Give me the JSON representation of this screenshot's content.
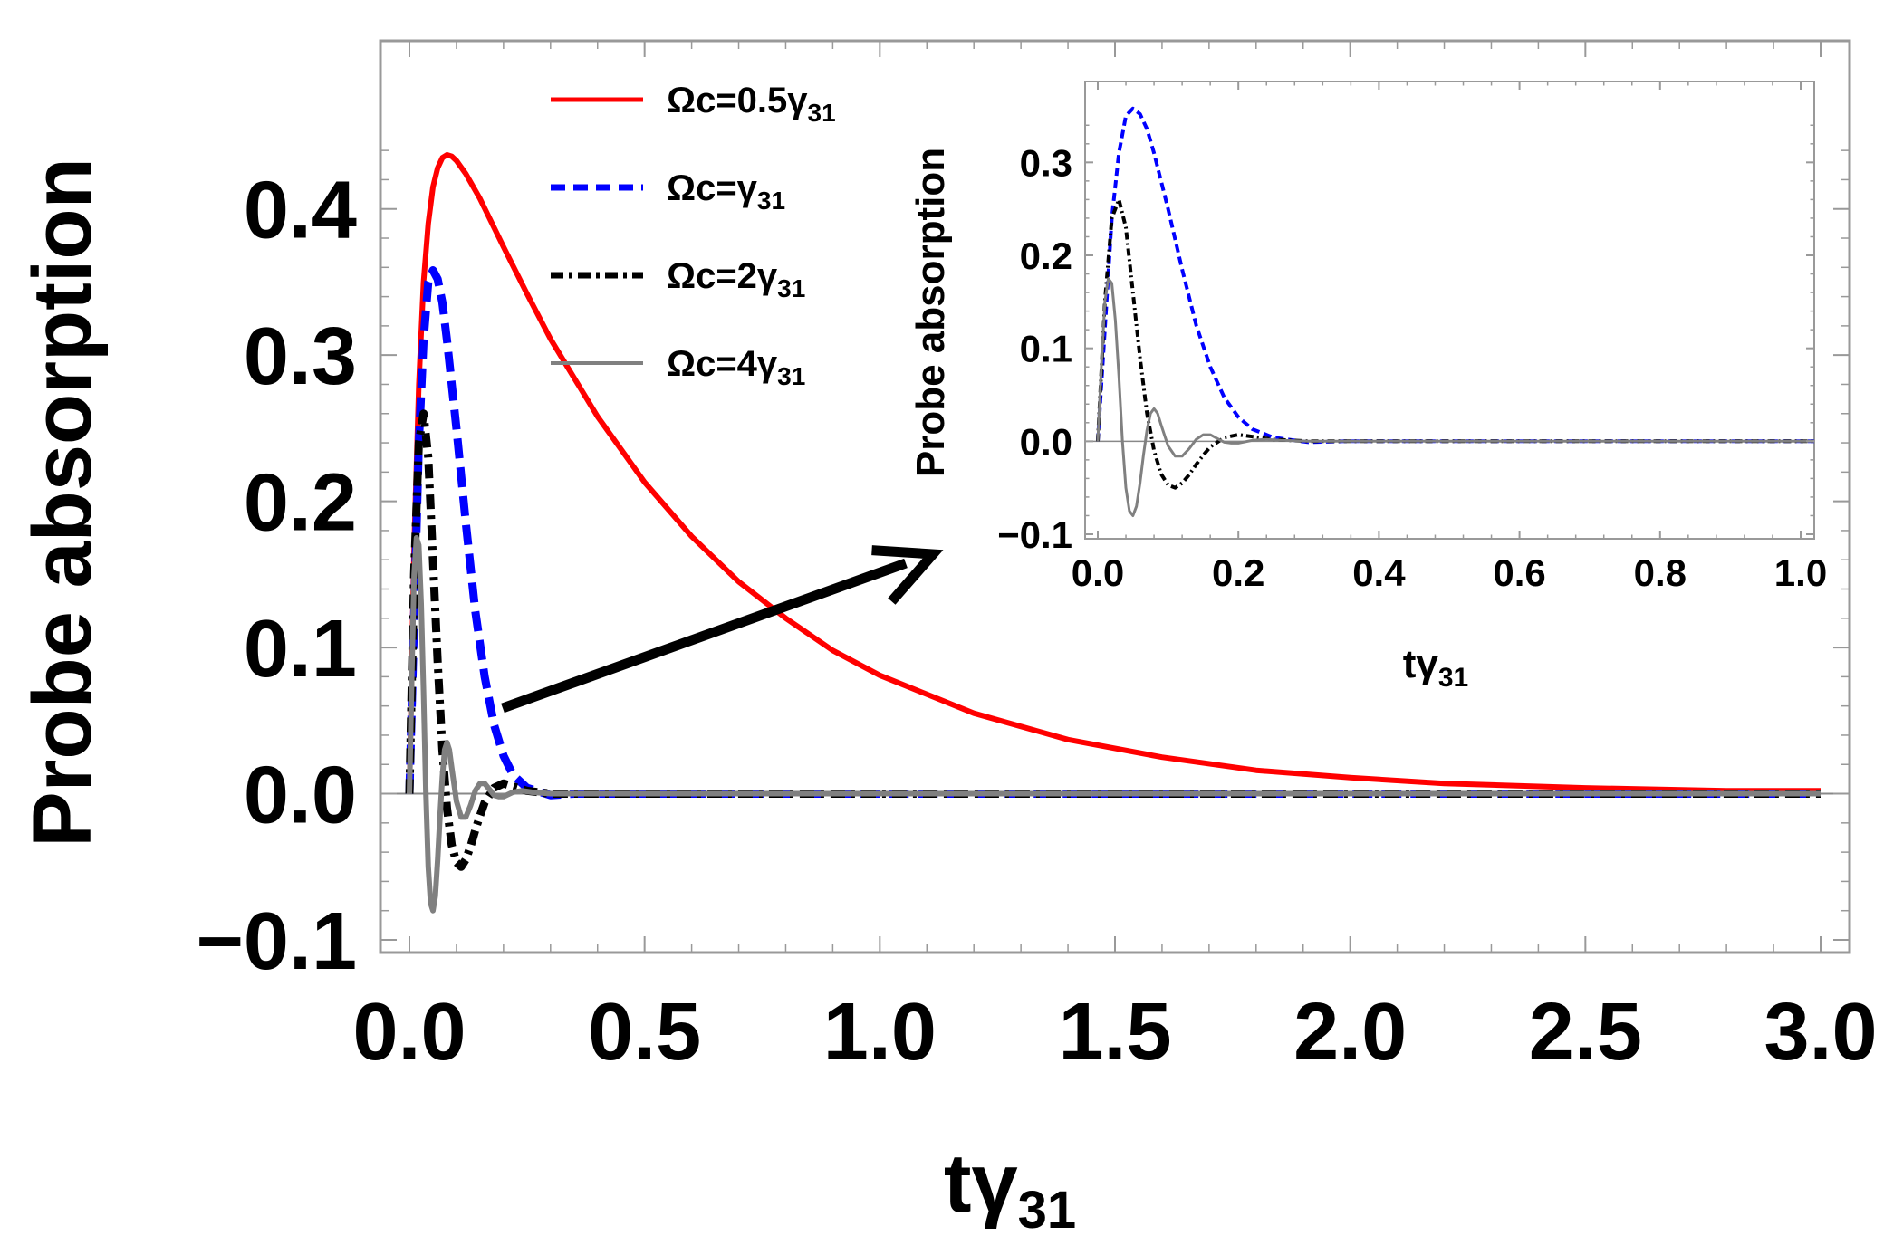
{
  "chart_data": [
    {
      "type": "line",
      "ylabel": "Probe absorption",
      "xlabel": "tγ",
      "xlabel_sub": "31",
      "xlim": [
        0.0,
        3.0
      ],
      "ylim": [
        -0.1,
        0.45
      ],
      "xticks": [
        "0.0",
        "0.5",
        "1.0",
        "1.5",
        "2.0",
        "2.5",
        "3.0"
      ],
      "yticks": [
        "−0.1",
        "0.0",
        "0.1",
        "0.2",
        "0.3",
        "0.4"
      ],
      "legend_position": "top-center",
      "series": [
        {
          "name": "Ωc=0.5γ",
          "name_sub": "31",
          "color": "#ff0000",
          "style": "solid",
          "x": [
            0.0,
            0.01,
            0.02,
            0.03,
            0.04,
            0.05,
            0.06,
            0.07,
            0.08,
            0.09,
            0.1,
            0.12,
            0.15,
            0.2,
            0.25,
            0.3,
            0.4,
            0.5,
            0.6,
            0.7,
            0.8,
            0.9,
            1.0,
            1.2,
            1.4,
            1.6,
            1.8,
            2.0,
            2.2,
            2.5,
            2.8,
            3.0
          ],
          "y": [
            0.0,
            0.17,
            0.28,
            0.35,
            0.39,
            0.415,
            0.428,
            0.435,
            0.437,
            0.436,
            0.433,
            0.424,
            0.407,
            0.374,
            0.342,
            0.311,
            0.258,
            0.213,
            0.176,
            0.145,
            0.12,
            0.098,
            0.081,
            0.055,
            0.037,
            0.025,
            0.016,
            0.011,
            0.007,
            0.004,
            0.002,
            0.002
          ]
        },
        {
          "name": "Ωc=γ",
          "name_sub": "31",
          "color": "#0000ff",
          "style": "dashed",
          "x": [
            0.0,
            0.01,
            0.02,
            0.03,
            0.04,
            0.05,
            0.06,
            0.07,
            0.08,
            0.1,
            0.12,
            0.14,
            0.16,
            0.18,
            0.2,
            0.22,
            0.25,
            0.3,
            0.35,
            0.4,
            0.5,
            1.0,
            2.0,
            3.0
          ],
          "y": [
            0.0,
            0.12,
            0.24,
            0.31,
            0.35,
            0.358,
            0.352,
            0.336,
            0.31,
            0.25,
            0.185,
            0.125,
            0.08,
            0.047,
            0.026,
            0.013,
            0.004,
            -0.001,
            0.0,
            0.0,
            0.0,
            0.0,
            0.0,
            0.0
          ]
        },
        {
          "name": "Ωc=2γ",
          "name_sub": "31",
          "color": "#000000",
          "style": "dashdot",
          "x": [
            0.0,
            0.01,
            0.02,
            0.03,
            0.04,
            0.05,
            0.06,
            0.07,
            0.08,
            0.09,
            0.1,
            0.11,
            0.12,
            0.13,
            0.14,
            0.15,
            0.16,
            0.18,
            0.2,
            0.22,
            0.25,
            0.3,
            0.35,
            0.5,
            1.0,
            2.0,
            3.0
          ],
          "y": [
            0.0,
            0.15,
            0.24,
            0.26,
            0.23,
            0.16,
            0.09,
            0.03,
            -0.01,
            -0.035,
            -0.047,
            -0.05,
            -0.045,
            -0.036,
            -0.025,
            -0.015,
            -0.006,
            0.004,
            0.007,
            0.005,
            0.002,
            0.0,
            0.0,
            0.0,
            0.0,
            0.0,
            0.0
          ]
        },
        {
          "name": "Ωc=4γ",
          "name_sub": "31",
          "color": "#808080",
          "style": "solid",
          "x": [
            0.0,
            0.005,
            0.01,
            0.015,
            0.02,
            0.025,
            0.03,
            0.035,
            0.04,
            0.045,
            0.05,
            0.055,
            0.06,
            0.065,
            0.07,
            0.075,
            0.08,
            0.085,
            0.09,
            0.1,
            0.11,
            0.12,
            0.13,
            0.14,
            0.15,
            0.16,
            0.17,
            0.18,
            0.19,
            0.2,
            0.22,
            0.24,
            0.26,
            0.3,
            0.35,
            0.5,
            1.0,
            2.0,
            3.0
          ],
          "y": [
            0.0,
            0.08,
            0.15,
            0.175,
            0.17,
            0.13,
            0.07,
            0.0,
            -0.05,
            -0.075,
            -0.08,
            -0.07,
            -0.045,
            -0.015,
            0.012,
            0.03,
            0.035,
            0.03,
            0.018,
            -0.005,
            -0.016,
            -0.016,
            -0.008,
            0.002,
            0.007,
            0.007,
            0.003,
            -0.001,
            -0.002,
            -0.002,
            0.001,
            0.002,
            0.001,
            0.0,
            0.0,
            0.0,
            0.0,
            0.0,
            0.0
          ]
        }
      ]
    },
    {
      "type": "line",
      "ylabel": "Probe absorption",
      "xlabel": "tγ",
      "xlabel_sub": "31",
      "xlim": [
        0.0,
        1.0
      ],
      "ylim": [
        -0.1,
        0.35
      ],
      "xticks": [
        "0.0",
        "0.2",
        "0.4",
        "0.6",
        "0.8",
        "1.0"
      ],
      "yticks": [
        "−0.1",
        "0.0",
        "0.1",
        "0.2",
        "0.3"
      ],
      "series_ref": "same as main chart (Ωc=γ, 2γ, 4γ shown)"
    }
  ]
}
